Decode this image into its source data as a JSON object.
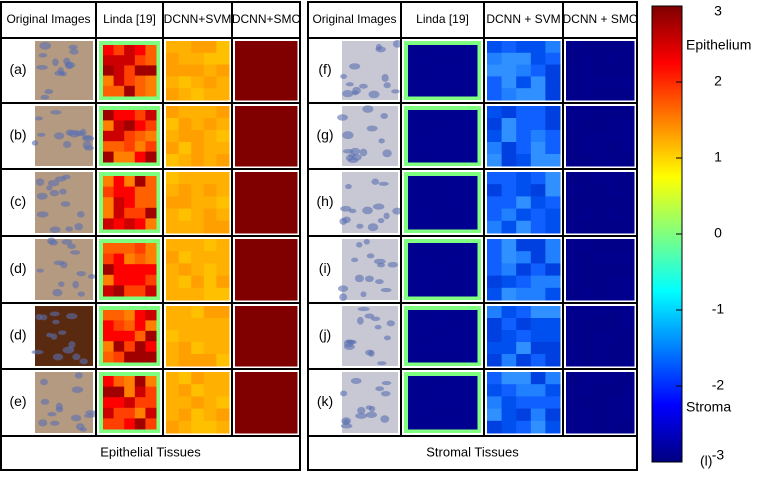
{
  "panels": [
    {
      "headers": [
        "Original Images",
        "Linda [19]",
        "DCNN+SVM",
        "DCNN+SMC"
      ],
      "rows": [
        "(a)",
        "(b)",
        "(c)",
        "(d)",
        "(d)",
        "(e)"
      ],
      "caption": "Epithelial Tissues"
    },
    {
      "headers": [
        "Original Images",
        "Linda [19]",
        "DCNN + SVM",
        "DCNN + SMC"
      ],
      "rows": [
        "(f)",
        "(g)",
        "(h)",
        "(i)",
        "(j)",
        "(k)"
      ],
      "caption": "Stromal Tissues"
    }
  ],
  "colorbar": {
    "ylim": [
      -3,
      3
    ],
    "yticks": [
      -3,
      -2,
      -1,
      0,
      1,
      2,
      3
    ],
    "top_label": "Epithelium",
    "bottom_label": "Stroma",
    "panel_label": "(l)"
  }
}
